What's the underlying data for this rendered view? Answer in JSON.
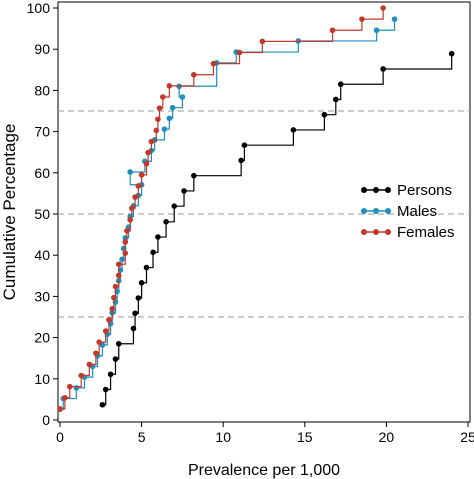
{
  "chart_data": {
    "type": "line",
    "step": true,
    "xlabel": "Prevalence per 1,000",
    "ylabel": "Cumulative Percentage",
    "xlim": [
      0,
      25
    ],
    "ylim": [
      0,
      100
    ],
    "x_ticks": [
      0,
      5,
      10,
      15,
      20,
      25
    ],
    "y_ticks": [
      0,
      10,
      20,
      30,
      40,
      50,
      60,
      70,
      80,
      90,
      100
    ],
    "reference_lines_y": [
      25,
      50,
      75
    ],
    "legend_position": "right-middle",
    "series": [
      {
        "name": "Persons",
        "color": "#000000",
        "points": [
          [
            2.6,
            3.7
          ],
          [
            2.8,
            7.4
          ],
          [
            3.1,
            11.1
          ],
          [
            3.4,
            14.8
          ],
          [
            3.6,
            18.5
          ],
          [
            4.5,
            22.2
          ],
          [
            4.6,
            25.9
          ],
          [
            4.8,
            29.6
          ],
          [
            5.0,
            33.3
          ],
          [
            5.3,
            37.0
          ],
          [
            5.7,
            40.7
          ],
          [
            6.0,
            44.4
          ],
          [
            6.5,
            48.1
          ],
          [
            7.0,
            51.9
          ],
          [
            7.6,
            55.6
          ],
          [
            8.2,
            59.3
          ],
          [
            11.1,
            63.0
          ],
          [
            11.3,
            66.7
          ],
          [
            14.3,
            70.4
          ],
          [
            16.2,
            74.1
          ],
          [
            16.9,
            77.8
          ],
          [
            17.2,
            81.5
          ],
          [
            19.8,
            85.2
          ],
          [
            24.0,
            88.9
          ]
        ]
      },
      {
        "name": "Males",
        "color": "#1e8fbf",
        "points": [
          [
            0,
            2.6
          ],
          [
            0.2,
            5.2
          ],
          [
            1.0,
            7.8
          ],
          [
            1.5,
            10.4
          ],
          [
            2.0,
            13.0
          ],
          [
            2.3,
            15.6
          ],
          [
            2.6,
            18.2
          ],
          [
            2.9,
            20.8
          ],
          [
            3.1,
            23.4
          ],
          [
            3.2,
            26.0
          ],
          [
            3.4,
            28.6
          ],
          [
            3.5,
            31.2
          ],
          [
            3.6,
            33.8
          ],
          [
            3.7,
            36.4
          ],
          [
            3.8,
            39.0
          ],
          [
            3.9,
            41.6
          ],
          [
            4.0,
            44.2
          ],
          [
            4.2,
            46.8
          ],
          [
            4.3,
            49.4
          ],
          [
            4.5,
            52.0
          ],
          [
            4.8,
            54.5
          ],
          [
            5.0,
            57.1
          ],
          [
            4.3,
            60.2
          ],
          [
            5.2,
            62.8
          ],
          [
            5.6,
            65.4
          ],
          [
            5.8,
            68.0
          ],
          [
            6.4,
            70.6
          ],
          [
            6.7,
            73.2
          ],
          [
            6.9,
            75.8
          ],
          [
            7.5,
            78.4
          ],
          [
            7.3,
            81.0
          ],
          [
            9.6,
            86.7
          ],
          [
            10.8,
            89.3
          ],
          [
            14.6,
            92.0
          ],
          [
            19.4,
            94.6
          ],
          [
            20.5,
            97.3
          ]
        ]
      },
      {
        "name": "Females",
        "color": "#c0392b",
        "points": [
          [
            0,
            2.7
          ],
          [
            0.3,
            5.4
          ],
          [
            0.6,
            8.1
          ],
          [
            1.3,
            10.8
          ],
          [
            1.8,
            13.5
          ],
          [
            2.2,
            16.2
          ],
          [
            2.4,
            18.9
          ],
          [
            2.8,
            21.6
          ],
          [
            3.0,
            24.3
          ],
          [
            3.2,
            27.0
          ],
          [
            3.3,
            29.7
          ],
          [
            3.4,
            32.4
          ],
          [
            3.6,
            35.1
          ],
          [
            3.6,
            37.8
          ],
          [
            4.0,
            40.5
          ],
          [
            4.0,
            43.2
          ],
          [
            4.1,
            45.9
          ],
          [
            4.3,
            48.6
          ],
          [
            4.4,
            51.4
          ],
          [
            4.6,
            54.1
          ],
          [
            4.8,
            56.8
          ],
          [
            5.0,
            59.5
          ],
          [
            5.3,
            62.2
          ],
          [
            5.4,
            64.9
          ],
          [
            5.6,
            67.6
          ],
          [
            5.9,
            70.3
          ],
          [
            6.0,
            73.0
          ],
          [
            6.1,
            75.7
          ],
          [
            6.3,
            78.4
          ],
          [
            6.7,
            81.1
          ],
          [
            8.2,
            83.8
          ],
          [
            9.4,
            86.5
          ],
          [
            11.0,
            89.2
          ],
          [
            12.4,
            91.9
          ],
          [
            16.7,
            94.6
          ],
          [
            18.5,
            97.3
          ],
          [
            19.8,
            100.0
          ]
        ]
      }
    ]
  }
}
